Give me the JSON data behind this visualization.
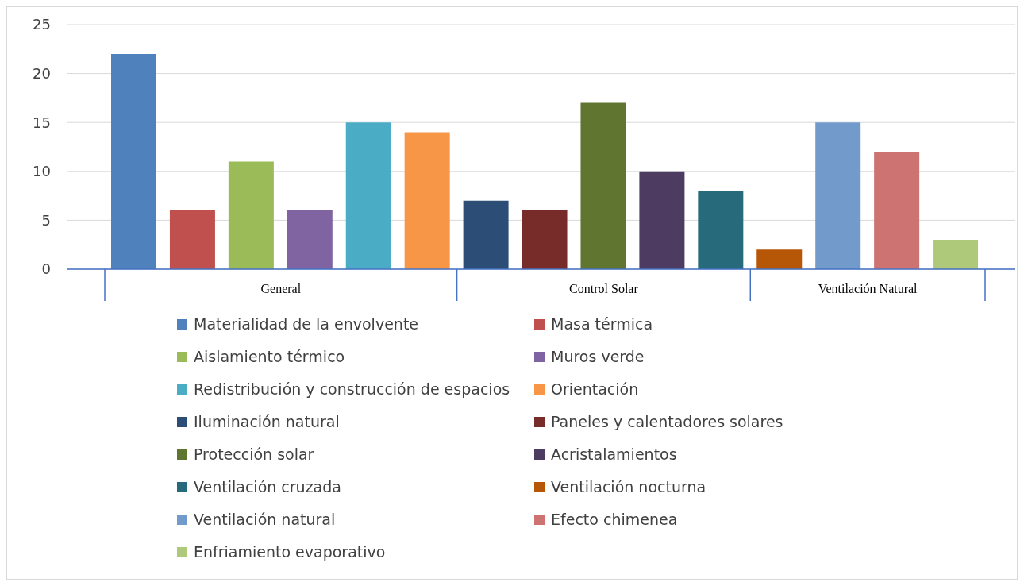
{
  "chart_data": {
    "type": "bar",
    "categories": [
      "General",
      "Control Solar",
      "Ventilación Natural"
    ],
    "series": [
      {
        "name": "Materialidad de la envolvente",
        "color": "#4f81bd",
        "values": [
          22,
          null,
          null
        ]
      },
      {
        "name": "Masa térmica",
        "color": "#c0504d",
        "values": [
          6,
          null,
          null
        ]
      },
      {
        "name": "Aislamiento térmico",
        "color": "#9bbb59",
        "values": [
          11,
          null,
          null
        ]
      },
      {
        "name": "Muros verde",
        "color": "#8064a2",
        "values": [
          6,
          null,
          null
        ]
      },
      {
        "name": "Redistribución y construcción de espacios",
        "color": "#4bacc6",
        "values": [
          15,
          null,
          null
        ]
      },
      {
        "name": "Orientación",
        "color": "#f79646",
        "values": [
          14,
          null,
          null
        ]
      },
      {
        "name": "Iluminación natural",
        "color": "#2c4d75",
        "values": [
          null,
          7,
          null
        ]
      },
      {
        "name": "Paneles y calentadores solares",
        "color": "#772c2a",
        "values": [
          null,
          6,
          null
        ]
      },
      {
        "name": "Protección solar",
        "color": "#5f7530",
        "values": [
          null,
          17,
          null
        ]
      },
      {
        "name": "Acristalamientos",
        "color": "#4d3b62",
        "values": [
          null,
          10,
          null
        ]
      },
      {
        "name": "Ventilación cruzada",
        "color": "#276a7c",
        "values": [
          null,
          8,
          null
        ]
      },
      {
        "name": "Ventilación nocturna",
        "color": "#b65708",
        "values": [
          null,
          null,
          2
        ]
      },
      {
        "name": "Ventilación natural",
        "color": "#729aca",
        "values": [
          null,
          null,
          15
        ]
      },
      {
        "name": "Efecto chimenea",
        "color": "#cd7371",
        "values": [
          null,
          null,
          12
        ]
      },
      {
        "name": "Enfriamiento evaporativo",
        "color": "#afc97a",
        "values": [
          null,
          null,
          3
        ]
      }
    ],
    "ylim": [
      0,
      25
    ],
    "yticks": [
      0,
      5,
      10,
      15,
      20,
      25
    ],
    "grid": "y",
    "legend": "bottom"
  }
}
